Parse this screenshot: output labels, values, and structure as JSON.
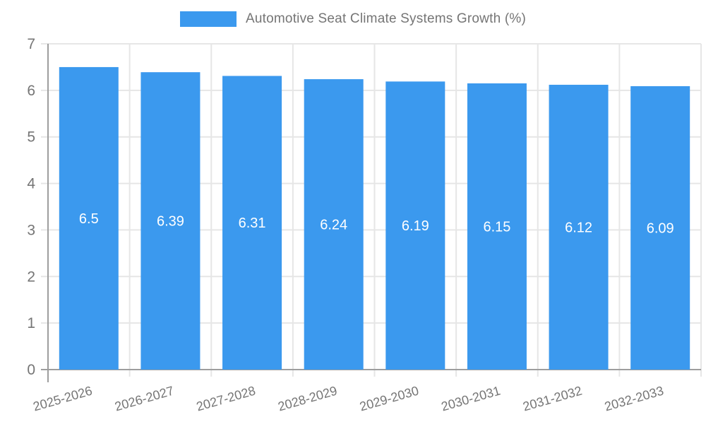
{
  "chart_data": {
    "type": "bar",
    "title": "Automotive Seat Climate Systems Growth (%)",
    "categories": [
      "2025-2026",
      "2026-2027",
      "2027-2028",
      "2028-2029",
      "2029-2030",
      "2030-2031",
      "2031-2032",
      "2032-2033"
    ],
    "values": [
      6.5,
      6.39,
      6.31,
      6.24,
      6.19,
      6.15,
      6.12,
      6.09
    ],
    "xlabel": "",
    "ylabel": "",
    "ylim": [
      0,
      7
    ],
    "yticks": [
      0,
      1,
      2,
      3,
      4,
      5,
      6,
      7
    ],
    "grid": true,
    "legend_position": "top-center",
    "bar_color": "#3B99EE",
    "value_label_color": "#FFFFFF",
    "grid_color": "#E6E6E6",
    "axis_color": "#9E9E9E",
    "tick_label_color": "#757575",
    "x_label_rotation_deg": -16
  },
  "legend": {
    "label": "Automotive Seat Climate Systems Growth (%)"
  }
}
